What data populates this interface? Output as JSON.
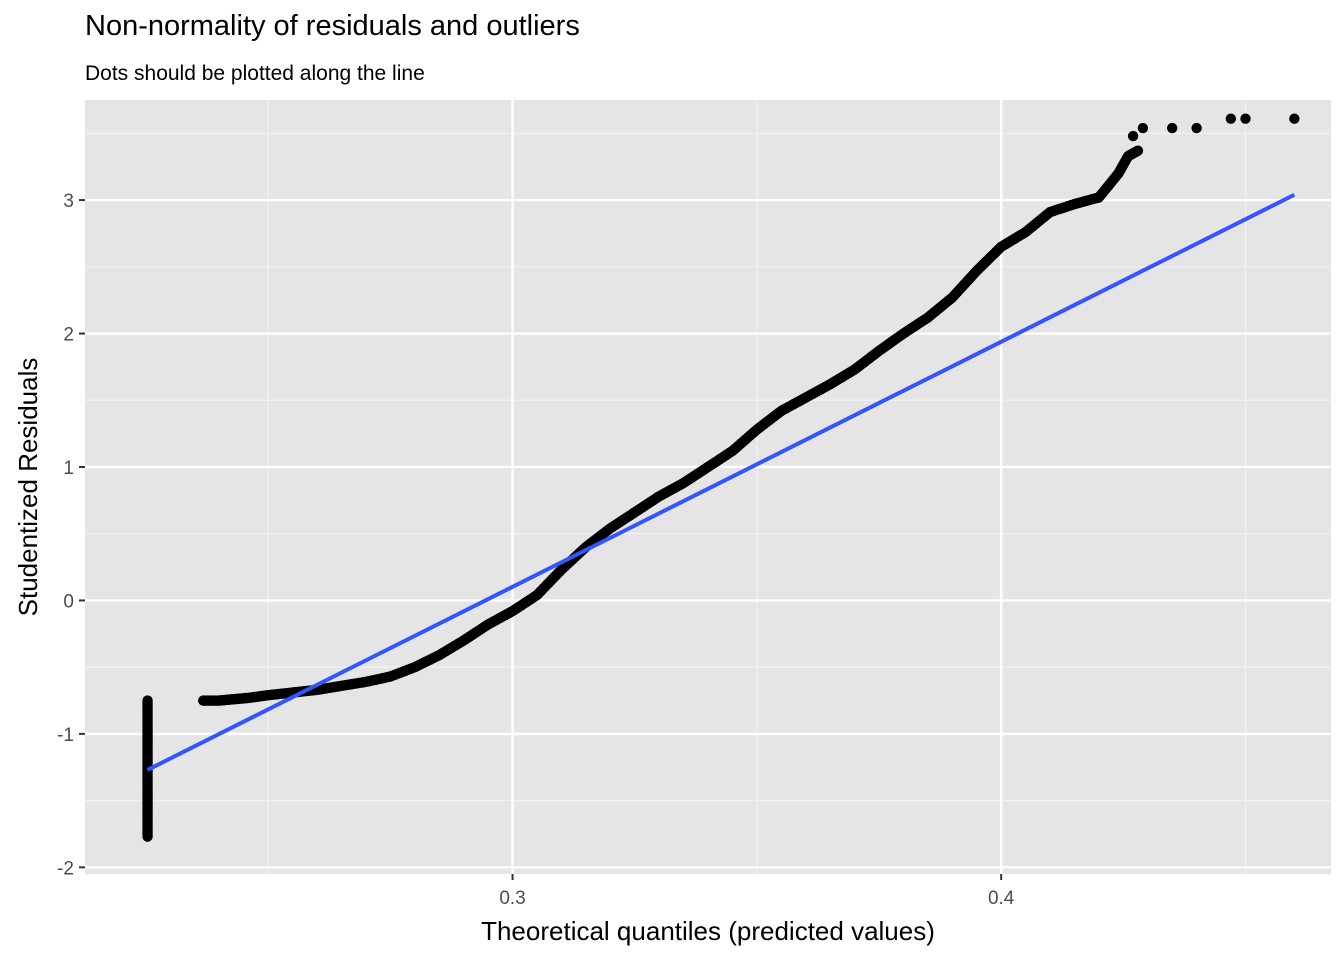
{
  "chart_data": {
    "type": "scatter",
    "title": "Non-normality of residuals and outliers",
    "subtitle": "Dots should be plotted along the line",
    "xlabel": "Theoretical quantiles (predicted values)",
    "ylabel": "Studentized Residuals",
    "xlim": [
      0.2125,
      0.4675
    ],
    "ylim": [
      -2.05,
      3.75
    ],
    "x_ticks": [
      0.3,
      0.4
    ],
    "x_tick_labels": [
      "0.3",
      "0.4"
    ],
    "x_minor_ticks": [
      0.25,
      0.35,
      0.45
    ],
    "y_ticks": [
      -2,
      -1,
      0,
      1,
      2,
      3
    ],
    "y_tick_labels": [
      "-2",
      "-1",
      "0",
      "1",
      "2",
      "3"
    ],
    "y_minor_ticks": [
      -1.5,
      -0.5,
      0.5,
      1.5,
      2.5,
      3.5
    ],
    "grid": true,
    "panel_background": "#e5e5e5",
    "point_color": "#000000",
    "line_color": "#3355ff",
    "vertical_cluster": {
      "x": 0.2253,
      "y_min": -1.77,
      "y_max": -0.75
    },
    "points_curve": [
      [
        0.2367,
        -0.75
      ],
      [
        0.24,
        -0.75
      ],
      [
        0.243,
        -0.74
      ],
      [
        0.246,
        -0.73
      ],
      [
        0.25,
        -0.71
      ],
      [
        0.255,
        -0.69
      ],
      [
        0.26,
        -0.67
      ],
      [
        0.265,
        -0.64
      ],
      [
        0.27,
        -0.61
      ],
      [
        0.275,
        -0.57
      ],
      [
        0.28,
        -0.5
      ],
      [
        0.285,
        -0.41
      ],
      [
        0.29,
        -0.3
      ],
      [
        0.295,
        -0.18
      ],
      [
        0.3,
        -0.08
      ],
      [
        0.305,
        0.04
      ],
      [
        0.31,
        0.23
      ],
      [
        0.315,
        0.4
      ],
      [
        0.32,
        0.54
      ],
      [
        0.325,
        0.66
      ],
      [
        0.33,
        0.78
      ],
      [
        0.335,
        0.88
      ],
      [
        0.34,
        1.0
      ],
      [
        0.345,
        1.12
      ],
      [
        0.35,
        1.28
      ],
      [
        0.355,
        1.42
      ],
      [
        0.36,
        1.52
      ],
      [
        0.365,
        1.62
      ],
      [
        0.37,
        1.73
      ],
      [
        0.375,
        1.87
      ],
      [
        0.38,
        2.0
      ],
      [
        0.385,
        2.12
      ],
      [
        0.39,
        2.27
      ],
      [
        0.395,
        2.47
      ],
      [
        0.4,
        2.65
      ],
      [
        0.405,
        2.76
      ],
      [
        0.41,
        2.91
      ],
      [
        0.415,
        2.97
      ],
      [
        0.42,
        3.02
      ],
      [
        0.424,
        3.2
      ],
      [
        0.426,
        3.33
      ],
      [
        0.428,
        3.37
      ]
    ],
    "points_outliers": [
      [
        0.427,
        3.48
      ],
      [
        0.429,
        3.54
      ],
      [
        0.435,
        3.54
      ],
      [
        0.44,
        3.54
      ],
      [
        0.447,
        3.61
      ],
      [
        0.45,
        3.61
      ],
      [
        0.46,
        3.61
      ]
    ],
    "reference_line": {
      "x": [
        0.2253,
        0.46
      ],
      "y": [
        -1.27,
        3.04
      ]
    }
  }
}
